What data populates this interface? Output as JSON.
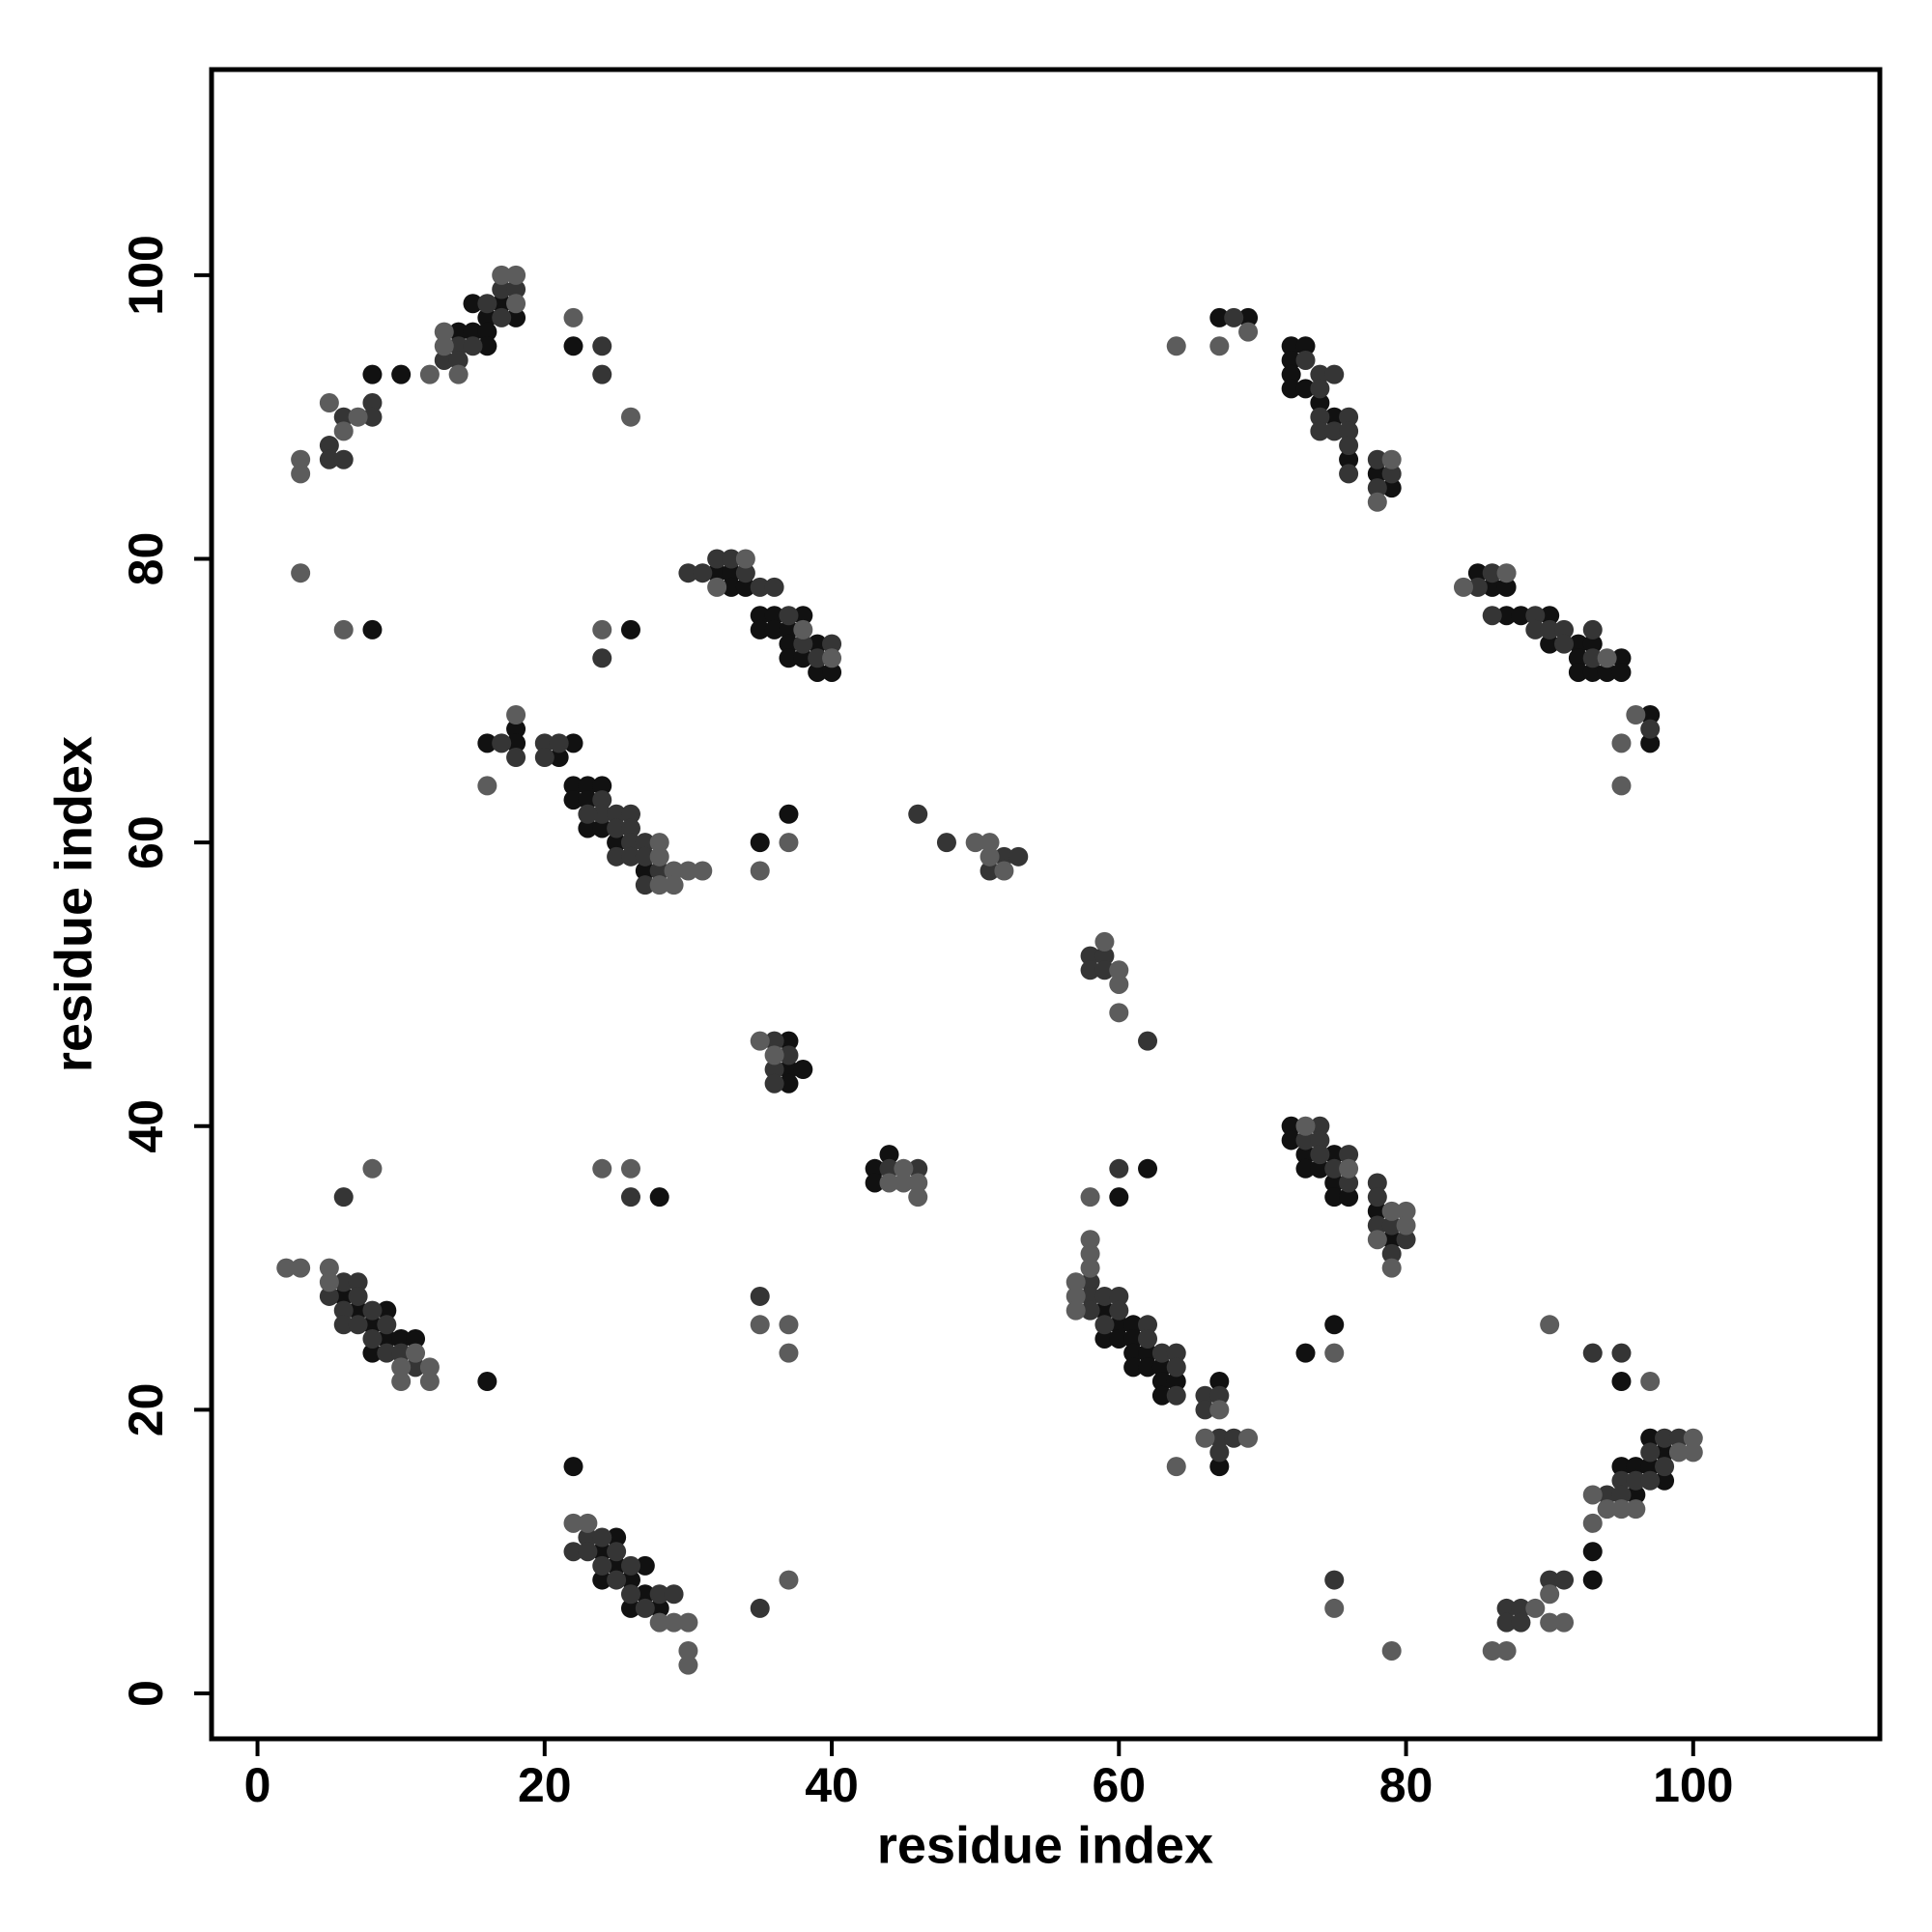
{
  "chart_data": {
    "type": "scatter",
    "xlabel": "residue index",
    "ylabel": "residue index",
    "xlim": [
      -3.2,
      113
    ],
    "ylim": [
      -3.2,
      114.5
    ],
    "xticks": [
      0,
      20,
      40,
      60,
      80,
      100
    ],
    "yticks": [
      0,
      20,
      40,
      60,
      80,
      100
    ],
    "series": [
      {
        "color": "#111111",
        "x": [
          8,
          10,
          14,
          15,
          15,
          16,
          16,
          16,
          17,
          18,
          22,
          8,
          26,
          32,
          33,
          33,
          34,
          35,
          35,
          36,
          36,
          37,
          37,
          37,
          38,
          38,
          39,
          39,
          40,
          16,
          18,
          18,
          21,
          22,
          22,
          22,
          23,
          23,
          24,
          23,
          24,
          25,
          27,
          35,
          37,
          37,
          37,
          37,
          38,
          43,
          43,
          44,
          67,
          69,
          72,
          72,
          72,
          72,
          73,
          73,
          74,
          75,
          76,
          78,
          79,
          85,
          86,
          87,
          87,
          88,
          90,
          90,
          92,
          92,
          92,
          93,
          93,
          94,
          95,
          95,
          97,
          97,
          6,
          7,
          8,
          8,
          9,
          9,
          10,
          11,
          16,
          28,
          22,
          24,
          24,
          25,
          25,
          26,
          26,
          27,
          27,
          28,
          60,
          62,
          72,
          72,
          73,
          73,
          74,
          75,
          75,
          75,
          76,
          78,
          79,
          59,
          59,
          60,
          60,
          61,
          61,
          61,
          61,
          62,
          62,
          63,
          63,
          63,
          64,
          67,
          67,
          73,
          75,
          95,
          93,
          93,
          95,
          96,
          96,
          97,
          97,
          98,
          98
        ],
        "values": [
          93,
          93,
          96,
          98,
          96,
          97,
          96,
          95,
          98,
          97,
          95,
          75,
          75,
          79,
          79,
          78,
          78,
          76,
          75,
          76,
          75,
          75,
          74,
          73,
          76,
          73,
          74,
          72,
          72,
          67,
          68,
          67,
          66,
          67,
          64,
          63,
          64,
          63,
          64,
          61,
          61,
          60,
          58,
          60,
          62,
          46,
          44,
          43,
          44,
          37,
          36,
          38,
          97,
          97,
          95,
          94,
          93,
          92,
          95,
          92,
          91,
          90,
          87,
          86,
          85,
          79,
          78,
          78,
          76,
          76,
          76,
          74,
          74,
          73,
          72,
          74,
          72,
          72,
          73,
          72,
          69,
          67,
          28,
          27,
          26,
          24,
          27,
          25,
          25,
          25,
          22,
          35,
          16,
          10,
          8,
          11,
          9,
          8,
          6,
          9,
          7,
          6,
          35,
          37,
          40,
          39,
          38,
          37,
          37,
          38,
          36,
          35,
          35,
          34,
          32,
          27,
          25,
          26,
          25,
          26,
          25,
          24,
          23,
          24,
          23,
          23,
          22,
          21,
          22,
          22,
          16,
          24,
          26,
          22,
          10,
          8,
          16,
          16,
          14,
          18,
          16,
          17,
          15
        ]
      },
      {
        "color": "#353535",
        "x": [
          5,
          5,
          6,
          6,
          8,
          8,
          13,
          14,
          14,
          15,
          16,
          17,
          17,
          18,
          24,
          24,
          24,
          30,
          31,
          32,
          33,
          34,
          35,
          36,
          37,
          38,
          39,
          40,
          17,
          18,
          20,
          20,
          21,
          24,
          24,
          23,
          25,
          25,
          25,
          26,
          26,
          26,
          26,
          27,
          27,
          27,
          28,
          46,
          48,
          51,
          52,
          53,
          58,
          58,
          59,
          59,
          62,
          36,
          36,
          36,
          37,
          44,
          46,
          68,
          73,
          74,
          74,
          74,
          74,
          75,
          75,
          76,
          76,
          76,
          76,
          78,
          78,
          79,
          85,
          86,
          86,
          89,
          89,
          90,
          91,
          91,
          93,
          93,
          97,
          5,
          6,
          6,
          6,
          7,
          7,
          7,
          8,
          8,
          9,
          9,
          10,
          11,
          6,
          26,
          35,
          22,
          23,
          23,
          24,
          24,
          25,
          25,
          26,
          26,
          27,
          28,
          29,
          35,
          60,
          73,
          74,
          74,
          74,
          75,
          76,
          76,
          78,
          78,
          78,
          79,
          79,
          80,
          58,
          58,
          58,
          59,
          59,
          60,
          60,
          62,
          62,
          63,
          64,
          64,
          64,
          66,
          66,
          67,
          67,
          67,
          68,
          75,
          93,
          95,
          94,
          95,
          95,
          96,
          97,
          97,
          98,
          98,
          99,
          87,
          87,
          88,
          88,
          90,
          91
        ],
        "values": [
          88,
          87,
          90,
          87,
          91,
          90,
          94,
          95,
          94,
          95,
          98,
          99,
          97,
          99,
          95,
          93,
          73,
          79,
          79,
          80,
          80,
          79,
          78,
          78,
          76,
          74,
          73,
          74,
          67,
          66,
          67,
          66,
          67,
          63,
          62,
          62,
          62,
          61,
          59,
          62,
          61,
          60,
          59,
          60,
          59,
          57,
          58,
          62,
          60,
          58,
          59,
          59,
          52,
          51,
          52,
          51,
          46,
          46,
          44,
          43,
          45,
          37,
          37,
          97,
          94,
          93,
          92,
          90,
          89,
          93,
          89,
          90,
          89,
          88,
          86,
          87,
          85,
          86,
          78,
          79,
          76,
          76,
          75,
          75,
          75,
          74,
          75,
          73,
          68,
          28,
          29,
          27,
          26,
          29,
          28,
          26,
          27,
          25,
          26,
          24,
          24,
          23,
          35,
          35,
          28,
          10,
          11,
          10,
          11,
          9,
          10,
          8,
          9,
          7,
          6,
          7,
          7,
          6,
          37,
          39,
          40,
          39,
          38,
          37,
          38,
          36,
          36,
          35,
          33,
          33,
          31,
          32,
          29,
          28,
          27,
          28,
          26,
          28,
          27,
          26,
          25,
          24,
          24,
          23,
          21,
          21,
          20,
          21,
          18,
          17,
          18,
          8,
          24,
          24,
          14,
          15,
          14,
          15,
          17,
          15,
          18,
          16,
          18,
          6,
          5,
          6,
          5,
          8,
          8
        ]
      },
      {
        "color": "#5c5c5c",
        "x": [
          3,
          3,
          5,
          6,
          7,
          12,
          13,
          13,
          14,
          17,
          18,
          18,
          22,
          26,
          3,
          6,
          24,
          32,
          34,
          38,
          40,
          16,
          18,
          28,
          28,
          28,
          29,
          29,
          30,
          31,
          35,
          37,
          50,
          51,
          51,
          52,
          59,
          60,
          60,
          60,
          35,
          36,
          44,
          45,
          45,
          46,
          46,
          64,
          67,
          69,
          78,
          79,
          84,
          87,
          94,
          96,
          95,
          95,
          2,
          3,
          5,
          5,
          10,
          10,
          11,
          12,
          12,
          8,
          24,
          26,
          35,
          37,
          37,
          22,
          23,
          28,
          29,
          30,
          30,
          30,
          37,
          58,
          73,
          76,
          78,
          79,
          79,
          80,
          80,
          57,
          57,
          57,
          58,
          58,
          58,
          66,
          67,
          69,
          64,
          75,
          75,
          79,
          90,
          97,
          93,
          93,
          94,
          95,
          96,
          99,
          100,
          100,
          86,
          87,
          89,
          90,
          90,
          91
        ],
        "values": [
          87,
          86,
          91,
          89,
          90,
          93,
          96,
          95,
          93,
          100,
          100,
          98,
          97,
          90,
          79,
          75,
          75,
          78,
          80,
          75,
          73,
          64,
          69,
          60,
          59,
          57,
          58,
          57,
          58,
          58,
          58,
          60,
          60,
          60,
          59,
          58,
          53,
          51,
          50,
          48,
          46,
          45,
          36,
          37,
          36,
          36,
          35,
          95,
          95,
          96,
          84,
          87,
          78,
          79,
          73,
          69,
          67,
          64,
          30,
          30,
          30,
          29,
          23,
          22,
          24,
          23,
          22,
          37,
          37,
          37,
          26,
          26,
          24,
          12,
          12,
          5,
          5,
          5,
          3,
          2,
          8,
          35,
          40,
          37,
          32,
          34,
          30,
          34,
          33,
          29,
          28,
          27,
          32,
          31,
          30,
          18,
          20,
          18,
          16,
          24,
          6,
          3,
          26,
          22,
          14,
          12,
          13,
          13,
          13,
          17,
          18,
          17,
          3,
          3,
          6,
          7,
          5,
          5
        ]
      }
    ]
  }
}
